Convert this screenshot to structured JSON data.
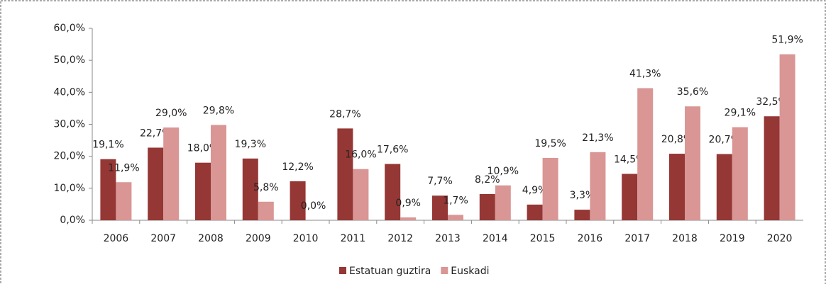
{
  "chart_data": {
    "type": "bar",
    "categories": [
      "2006",
      "2007",
      "2008",
      "2009",
      "2010",
      "2011",
      "2012",
      "2013",
      "2014",
      "2015",
      "2016",
      "2017",
      "2018",
      "2019",
      "2020"
    ],
    "series": [
      {
        "name": "Estatuan guztira",
        "color": "#953735",
        "values": [
          19.1,
          22.7,
          18.0,
          19.3,
          12.2,
          28.7,
          17.6,
          7.7,
          8.2,
          4.9,
          3.3,
          14.5,
          20.8,
          20.7,
          32.5
        ],
        "value_labels": [
          "19,1%",
          "22,7%",
          "18,0%",
          "19,3%",
          "12,2%",
          "28,7%",
          "17,6%",
          "7,7%",
          "8,2%",
          "4,9%",
          "3,3%",
          "14,5%",
          "20,8%",
          "20,7%",
          "32,5%"
        ]
      },
      {
        "name": "Euskadi",
        "color": "#d99694",
        "values": [
          11.9,
          29.0,
          29.8,
          5.8,
          0.0,
          16.0,
          0.9,
          1.7,
          10.9,
          19.5,
          21.3,
          41.3,
          35.6,
          29.1,
          51.9
        ],
        "value_labels": [
          "11,9%",
          "29,0%",
          "29,8%",
          "5,8%",
          "0,0%",
          "16,0%",
          "0,9%",
          "1,7%",
          "10,9%",
          "19,5%",
          "21,3%",
          "41,3%",
          "35,6%",
          "29,1%",
          "51,9%"
        ]
      }
    ],
    "ylim": [
      0,
      60
    ],
    "yticks": [
      {
        "value": 0,
        "label": "0,0%"
      },
      {
        "value": 10,
        "label": "10,0%"
      },
      {
        "value": 20,
        "label": "20,0%"
      },
      {
        "value": 30,
        "label": "30,0%"
      },
      {
        "value": 40,
        "label": "40,0%"
      },
      {
        "value": 50,
        "label": "50,0%"
      },
      {
        "value": 60,
        "label": "60,0%"
      }
    ],
    "legend": "bottom"
  }
}
